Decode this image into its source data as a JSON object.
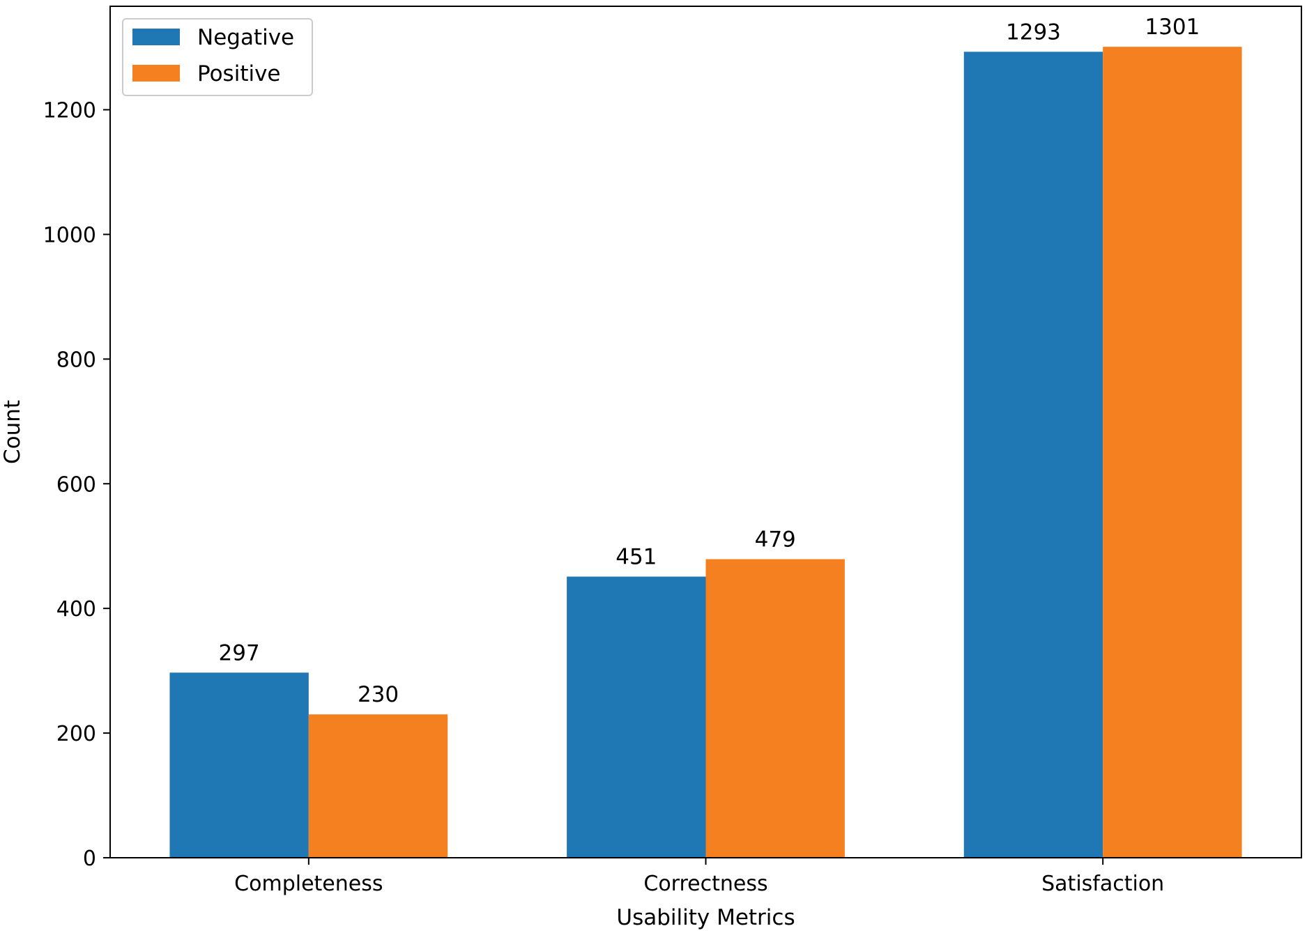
{
  "chart_data": {
    "type": "bar",
    "title": "",
    "xlabel": "Usability Metrics",
    "ylabel": "Count",
    "categories": [
      "Completeness",
      "Correctness",
      "Satisfaction"
    ],
    "series": [
      {
        "name": "Negative",
        "color": "#1f77b4",
        "values": [
          297,
          451,
          1293
        ]
      },
      {
        "name": "Positive",
        "color": "#f58020",
        "values": [
          230,
          479,
          1301
        ]
      }
    ],
    "ylim": [
      0,
      1366
    ],
    "yticks": [
      0,
      200,
      400,
      600,
      800,
      1000,
      1200
    ],
    "ytick_labels": [
      "0",
      "200",
      "400",
      "600",
      "800",
      "1000",
      "1200"
    ],
    "legend_position": "upper-left",
    "grid": false
  }
}
